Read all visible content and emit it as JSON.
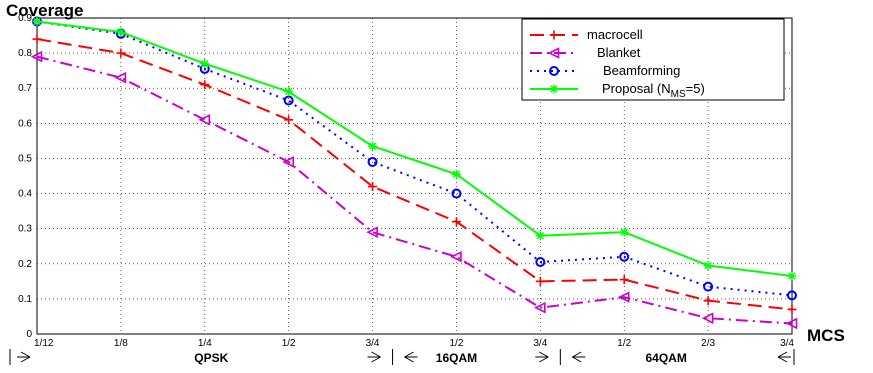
{
  "chart_data": {
    "type": "line",
    "ylabel": "Coverage",
    "xlabel": "MCS",
    "categories": [
      "1/12",
      "1/8",
      "1/4",
      "1/2",
      "3/4",
      "1/2",
      "3/4",
      "1/2",
      "2/3",
      "3/4"
    ],
    "ylim": [
      0,
      0.9
    ],
    "yticks": [
      "0",
      "0.1",
      "0.2",
      "0.3",
      "0.4",
      "0.5",
      "0.6",
      "0.7",
      "0.8",
      "0.9"
    ],
    "grid": true,
    "legend_position": "top-right",
    "modulation_groups": [
      {
        "label": "QPSK",
        "from": 0,
        "to": 4
      },
      {
        "label": "16QAM",
        "from": 4,
        "to": 6
      },
      {
        "label": "64QAM",
        "from": 6,
        "to": 9
      }
    ],
    "series": [
      {
        "name": "macrocell",
        "color": "#ff0000",
        "marker": "plus",
        "dash": "dashed",
        "values": [
          0.84,
          0.8,
          0.71,
          0.61,
          0.42,
          0.32,
          0.15,
          0.155,
          0.095,
          0.07
        ]
      },
      {
        "name": "Blanket",
        "color": "#cc00cc",
        "marker": "triangle-left",
        "dash": "dash-dot",
        "values": [
          0.79,
          0.73,
          0.61,
          0.49,
          0.29,
          0.22,
          0.075,
          0.105,
          0.045,
          0.03
        ]
      },
      {
        "name": "Beamforming",
        "color": "#0000ff",
        "marker": "circle",
        "dash": "dotted",
        "values": [
          0.89,
          0.855,
          0.755,
          0.665,
          0.49,
          0.4,
          0.205,
          0.22,
          0.135,
          0.11
        ]
      },
      {
        "name": "Proposal (N",
        "name_sub": "MS",
        "name_tail": "=5)",
        "color": "#00ff00",
        "marker": "star",
        "dash": "solid",
        "values": [
          0.89,
          0.86,
          0.77,
          0.69,
          0.535,
          0.455,
          0.28,
          0.29,
          0.195,
          0.165
        ]
      }
    ]
  }
}
